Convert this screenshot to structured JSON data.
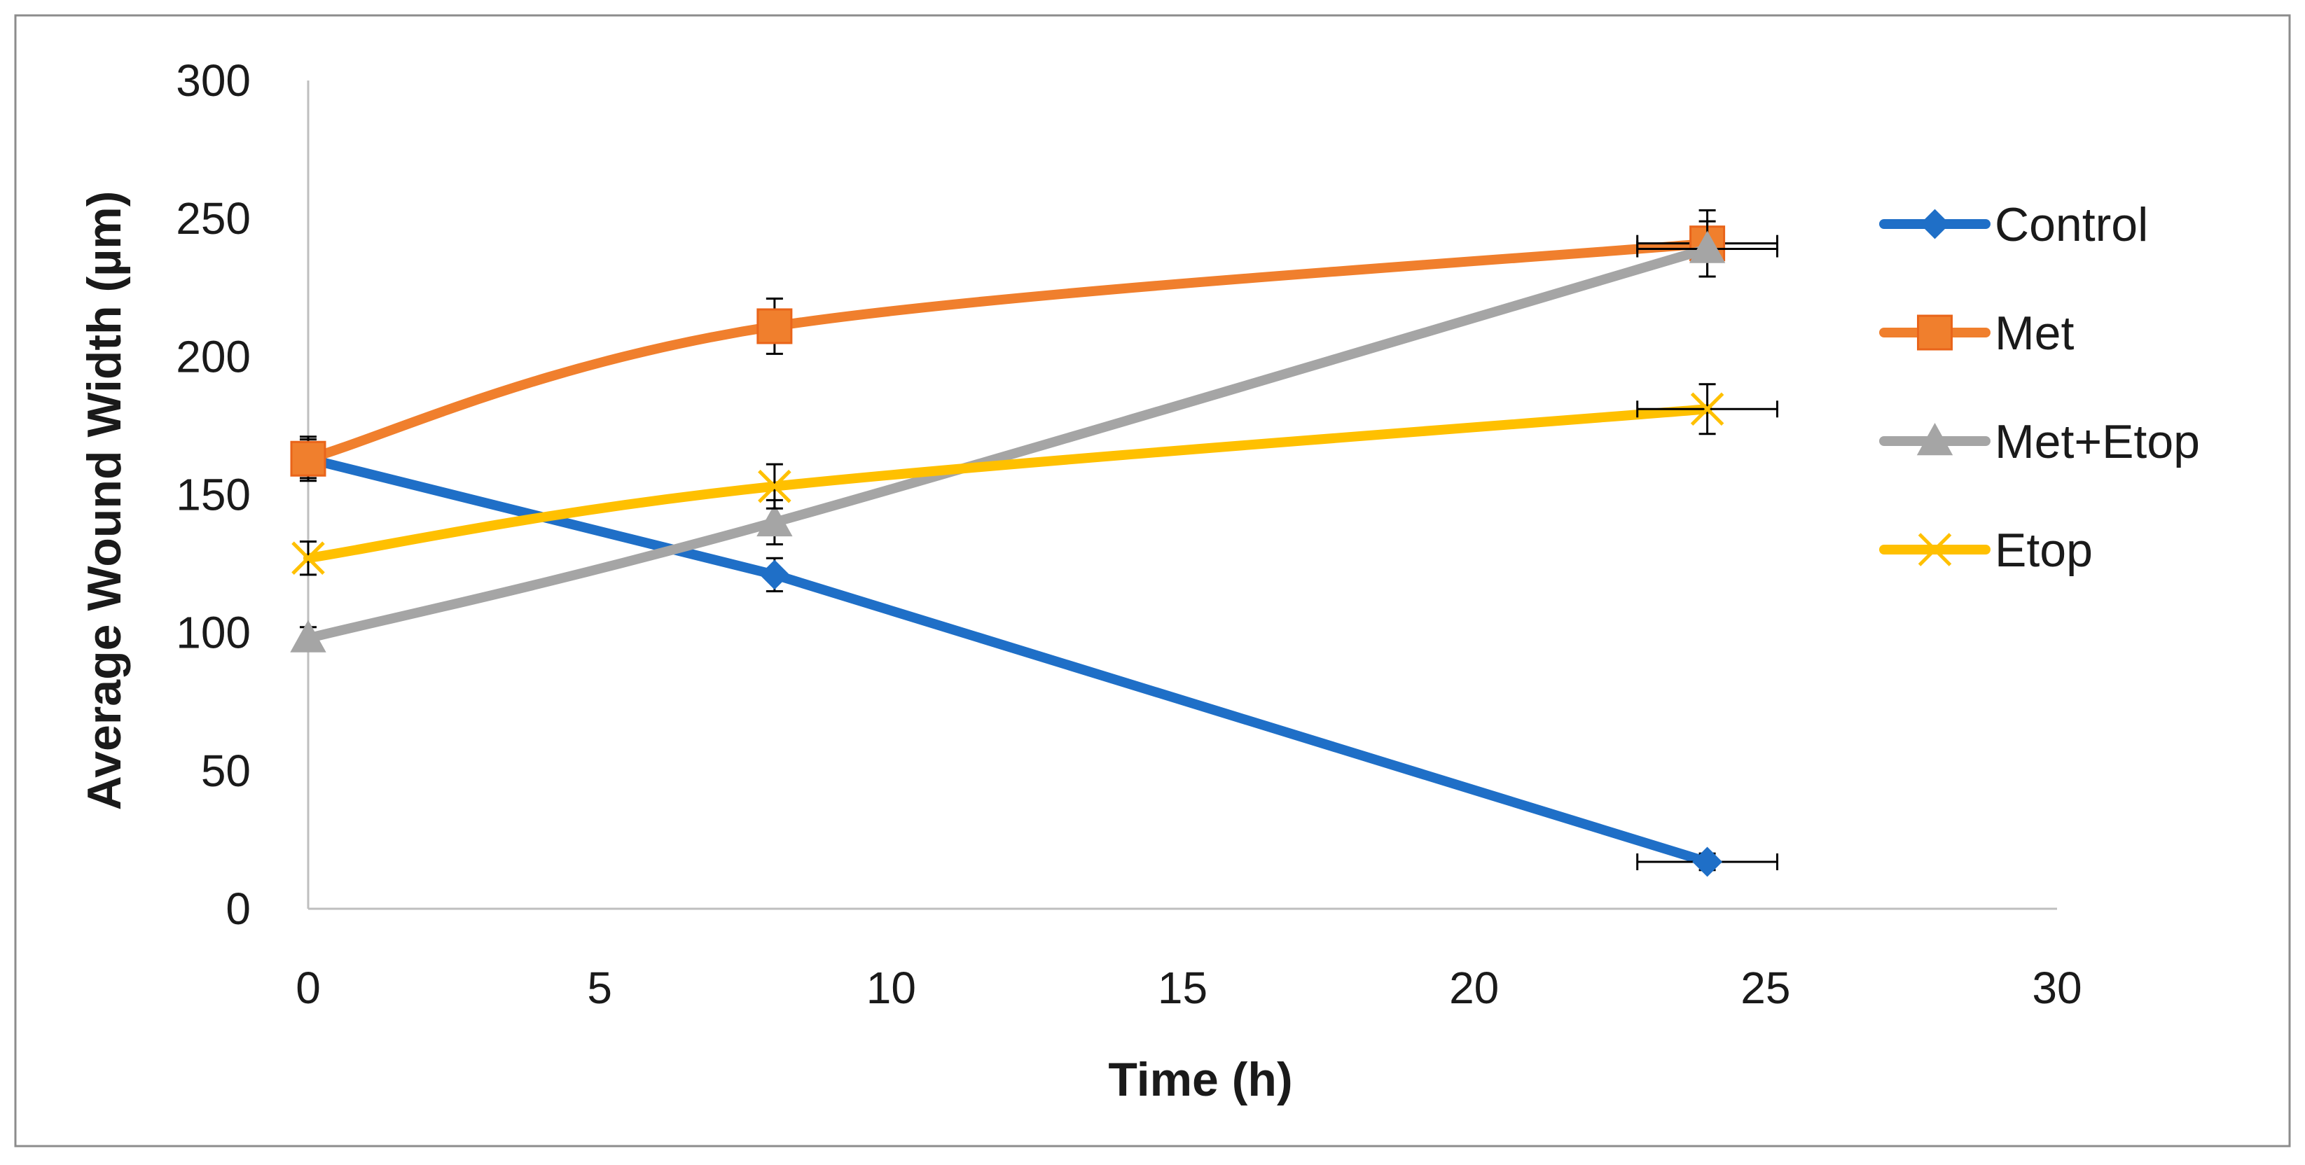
{
  "chart_data": {
    "type": "line",
    "title": "",
    "xlabel": "Time (h)",
    "ylabel": "Average Wound Width (µm)",
    "xlim": [
      0,
      30
    ],
    "ylim": [
      0,
      300
    ],
    "x_ticks": [
      0,
      5,
      10,
      15,
      20,
      25,
      30
    ],
    "y_ticks": [
      0,
      50,
      100,
      150,
      200,
      250,
      300
    ],
    "grid": false,
    "legend_position": "right",
    "series": [
      {
        "name": "Control",
        "color": "#1f6fc7",
        "marker": "diamond",
        "smooth": false,
        "points": [
          {
            "x": 0,
            "y": 163,
            "yerr": 7,
            "xerr": 0
          },
          {
            "x": 8,
            "y": 121,
            "yerr": 6,
            "xerr": 0
          },
          {
            "x": 24,
            "y": 17,
            "yerr": 3,
            "xerr": 1.2
          }
        ]
      },
      {
        "name": "Met",
        "color": "#f07f2d",
        "marker": "square",
        "smooth": true,
        "points": [
          {
            "x": 0,
            "y": 163,
            "yerr": 8,
            "xerr": 0
          },
          {
            "x": 8,
            "y": 211,
            "yerr": 10,
            "xerr": 0
          },
          {
            "x": 24,
            "y": 241,
            "yerr": 12,
            "xerr": 1.2
          }
        ]
      },
      {
        "name": "Met+Etop",
        "color": "#a5a5a5",
        "marker": "triangle",
        "smooth": true,
        "points": [
          {
            "x": 0,
            "y": 98,
            "yerr": 4,
            "xerr": 0
          },
          {
            "x": 8,
            "y": 140,
            "yerr": 8,
            "xerr": 0
          },
          {
            "x": 24,
            "y": 239,
            "yerr": 10,
            "xerr": 1.2
          }
        ]
      },
      {
        "name": "Etop",
        "color": "#ffc000",
        "marker": "x",
        "smooth": true,
        "points": [
          {
            "x": 0,
            "y": 127,
            "yerr": 6,
            "xerr": 0
          },
          {
            "x": 8,
            "y": 153,
            "yerr": 8,
            "xerr": 0
          },
          {
            "x": 24,
            "y": 181,
            "yerr": 9,
            "xerr": 1.2
          }
        ]
      }
    ]
  }
}
